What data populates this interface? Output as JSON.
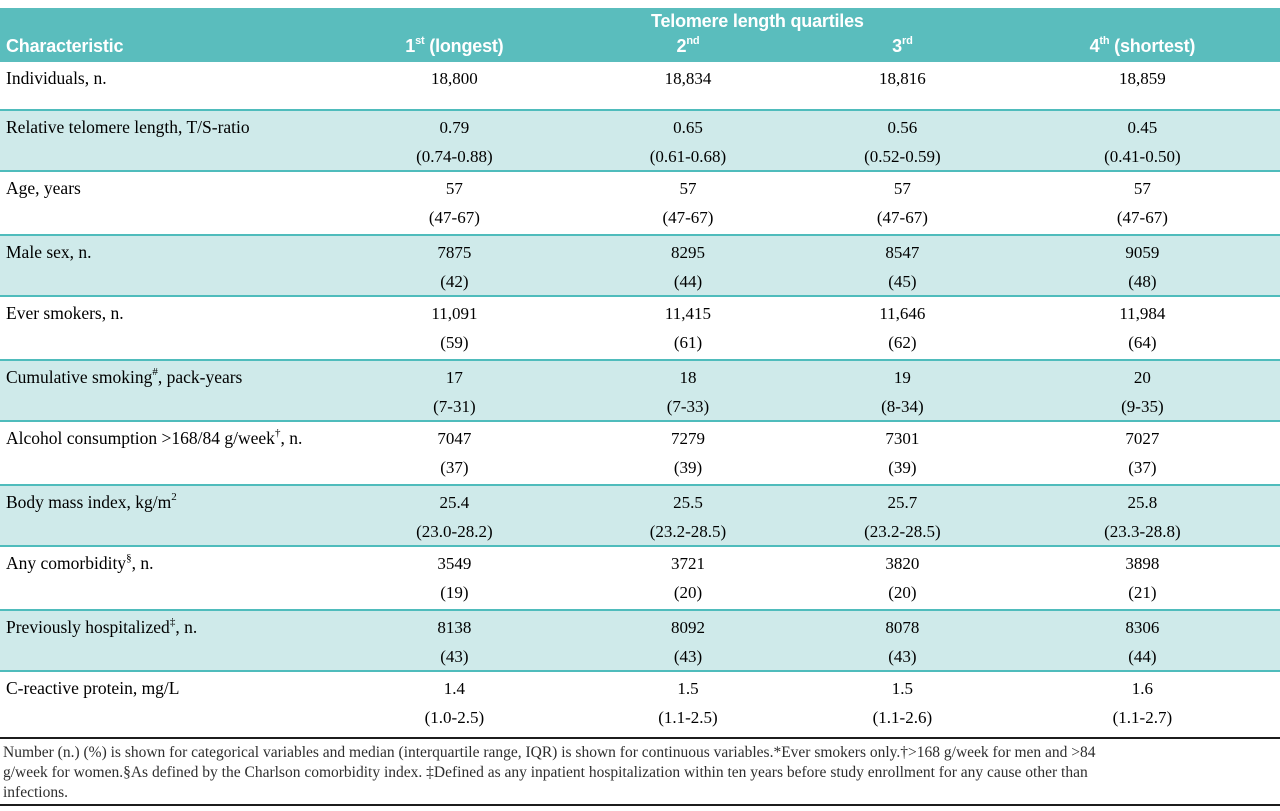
{
  "table": {
    "group_title": "Telomere length quartiles",
    "columns": {
      "characteristic": "Characteristic",
      "quartiles": [
        {
          "pre": "1",
          "sup": "st",
          "post": " (longest)"
        },
        {
          "pre": "2",
          "sup": "nd",
          "post": ""
        },
        {
          "pre": "3",
          "sup": "rd",
          "post": ""
        },
        {
          "pre": "4",
          "sup": "th",
          "post": " (shortest)"
        }
      ]
    },
    "rows": [
      {
        "label": {
          "pre": "Individuals, n.",
          "sup": "",
          "post": ""
        },
        "values": [
          {
            "main": "18,800",
            "sub": ""
          },
          {
            "main": "18,834",
            "sub": ""
          },
          {
            "main": "18,816",
            "sub": ""
          },
          {
            "main": "18,859",
            "sub": ""
          }
        ]
      },
      {
        "label": {
          "pre": "Relative telomere length, T/S-ratio",
          "sup": "",
          "post": ""
        },
        "values": [
          {
            "main": "0.79",
            "sub": "(0.74-0.88)"
          },
          {
            "main": "0.65",
            "sub": "(0.61-0.68)"
          },
          {
            "main": "0.56",
            "sub": "(0.52-0.59)"
          },
          {
            "main": "0.45",
            "sub": "(0.41-0.50)"
          }
        ]
      },
      {
        "label": {
          "pre": "Age, years",
          "sup": "",
          "post": ""
        },
        "values": [
          {
            "main": "57",
            "sub": "(47-67)"
          },
          {
            "main": "57",
            "sub": "(47-67)"
          },
          {
            "main": "57",
            "sub": "(47-67)"
          },
          {
            "main": "57",
            "sub": "(47-67)"
          }
        ]
      },
      {
        "label": {
          "pre": "Male sex, n.",
          "sup": "",
          "post": ""
        },
        "values": [
          {
            "main": "7875",
            "sub": "(42)"
          },
          {
            "main": "8295",
            "sub": "(44)"
          },
          {
            "main": "8547",
            "sub": "(45)"
          },
          {
            "main": "9059",
            "sub": "(48)"
          }
        ]
      },
      {
        "label": {
          "pre": "Ever smokers, n.",
          "sup": "",
          "post": ""
        },
        "values": [
          {
            "main": "11,091",
            "sub": "(59)"
          },
          {
            "main": "11,415",
            "sub": "(61)"
          },
          {
            "main": "11,646",
            "sub": "(62)"
          },
          {
            "main": "11,984",
            "sub": "(64)"
          }
        ]
      },
      {
        "label": {
          "pre": "Cumulative smoking",
          "sup": "#",
          "post": ", pack-years"
        },
        "values": [
          {
            "main": "17",
            "sub": "(7-31)"
          },
          {
            "main": "18",
            "sub": "(7-33)"
          },
          {
            "main": "19",
            "sub": "(8-34)"
          },
          {
            "main": "20",
            "sub": "(9-35)"
          }
        ]
      },
      {
        "label": {
          "pre": "Alcohol consumption >168/84 g/week",
          "sup": "†",
          "post": ", n."
        },
        "values": [
          {
            "main": "7047",
            "sub": "(37)"
          },
          {
            "main": "7279",
            "sub": "(39)"
          },
          {
            "main": "7301",
            "sub": "(39)"
          },
          {
            "main": "7027",
            "sub": "(37)"
          }
        ]
      },
      {
        "label": {
          "pre": "Body mass index, kg/m",
          "sup": "2",
          "post": ""
        },
        "values": [
          {
            "main": "25.4",
            "sub": "(23.0-28.2)"
          },
          {
            "main": "25.5",
            "sub": "(23.2-28.5)"
          },
          {
            "main": "25.7",
            "sub": "(23.2-28.5)"
          },
          {
            "main": "25.8",
            "sub": "(23.3-28.8)"
          }
        ]
      },
      {
        "label": {
          "pre": "Any comorbidity",
          "sup": "§",
          "post": ", n."
        },
        "values": [
          {
            "main": "3549",
            "sub": "(19)"
          },
          {
            "main": "3721",
            "sub": "(20)"
          },
          {
            "main": "3820",
            "sub": "(20)"
          },
          {
            "main": "3898",
            "sub": "(21)"
          }
        ]
      },
      {
        "label": {
          "pre": "Previously hospitalized",
          "sup": "‡",
          "post": ", n."
        },
        "values": [
          {
            "main": "8138",
            "sub": "(43)"
          },
          {
            "main": "8092",
            "sub": "(43)"
          },
          {
            "main": "8078",
            "sub": "(43)"
          },
          {
            "main": "8306",
            "sub": "(44)"
          }
        ]
      },
      {
        "label": {
          "pre": "C-reactive protein, mg/L",
          "sup": "",
          "post": ""
        },
        "values": [
          {
            "main": "1.4",
            "sub": "(1.0-2.5)"
          },
          {
            "main": "1.5",
            "sub": "(1.1-2.5)"
          },
          {
            "main": "1.5",
            "sub": "(1.1-2.6)"
          },
          {
            "main": "1.6",
            "sub": "(1.1-2.7)"
          }
        ]
      }
    ]
  },
  "footnote": {
    "lines": [
      "Number (n.) (%) is shown for categorical variables and median (interquartile range, IQR) is shown for continuous variables.*Ever smokers only.†>168 g/week for men and >84",
      "g/week for women.§As defined by the Charlson comorbidity index. ‡Defined as any inpatient hospitalization within ten years before study enrollment for any cause other than",
      "infections."
    ]
  },
  "colors": {
    "header_teal": "#5abdbd",
    "row_teal": "#cfeaea",
    "divider_teal": "#4fbcbc",
    "rule_dark": "#1c1c1c"
  }
}
